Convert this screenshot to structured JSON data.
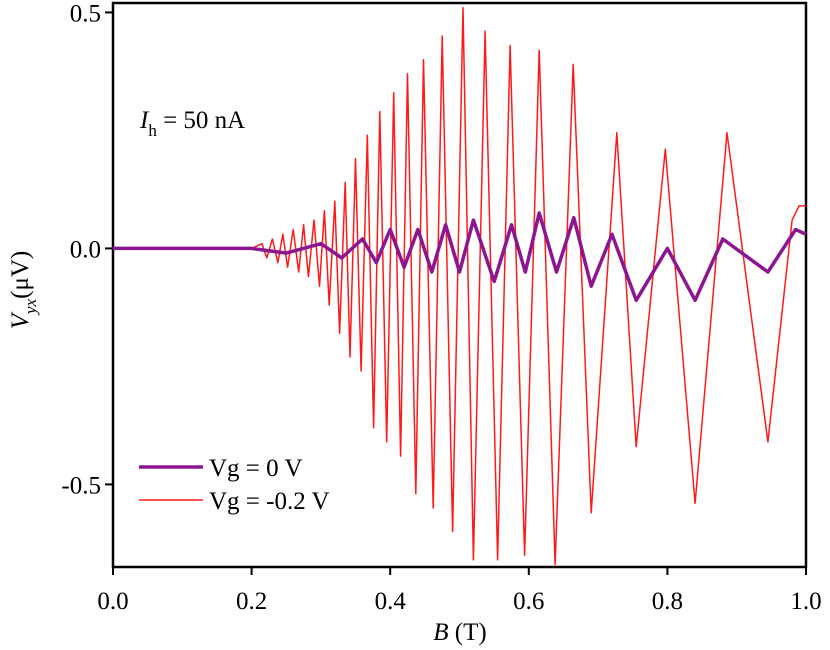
{
  "chart_data": {
    "type": "line",
    "annotation": {
      "symbol": "I",
      "subscript": "h",
      "text": " = 50 nA"
    },
    "x_label": {
      "symbol": "B",
      "unit": " (T)"
    },
    "y_label": {
      "symbol": "V",
      "subscript": "yx",
      "unit": "(μV)"
    },
    "xlim": [
      0,
      1.0
    ],
    "xticks": [
      {
        "value": 0,
        "label": "0.0"
      },
      {
        "value": 0.2,
        "label": "0.2"
      },
      {
        "value": 0.4,
        "label": "0.4"
      },
      {
        "value": 0.6,
        "label": "0.6"
      },
      {
        "value": 0.8,
        "label": "0.8"
      },
      {
        "value": 1.0,
        "label": "1.0"
      }
    ],
    "ylim": [
      -0.675,
      0.52
    ],
    "yticks": [
      {
        "value": -0.5,
        "label": "-0.5"
      },
      {
        "value": 0,
        "label": "0.0"
      },
      {
        "value": 0.5,
        "label": "0.5"
      }
    ],
    "legend": "lower left",
    "series": [
      {
        "name": "Vg = -0.2 V",
        "color": "#ff1a1a",
        "width": 1.5,
        "x": [
          0,
          0.05,
          0.1,
          0.15,
          0.2,
          0.215,
          0.222,
          0.23,
          0.238,
          0.245,
          0.252,
          0.26,
          0.268,
          0.275,
          0.282,
          0.29,
          0.298,
          0.305,
          0.312,
          0.32,
          0.327,
          0.335,
          0.342,
          0.35,
          0.358,
          0.367,
          0.376,
          0.385,
          0.395,
          0.405,
          0.415,
          0.425,
          0.437,
          0.448,
          0.462,
          0.475,
          0.49,
          0.505,
          0.52,
          0.537,
          0.555,
          0.573,
          0.594,
          0.615,
          0.638,
          0.664,
          0.69,
          0.727,
          0.755,
          0.797,
          0.84,
          0.886,
          0.945,
          0.98,
          0.99,
          1.0
        ],
        "values": [
          0,
          0,
          0,
          0,
          0,
          0.01,
          -0.02,
          0.02,
          -0.03,
          0.03,
          -0.04,
          0.04,
          -0.05,
          0.05,
          -0.06,
          0.06,
          -0.08,
          0.08,
          -0.12,
          0.1,
          -0.18,
          0.14,
          -0.23,
          0.19,
          -0.26,
          0.24,
          -0.38,
          0.29,
          -0.41,
          0.33,
          -0.44,
          0.37,
          -0.52,
          0.4,
          -0.55,
          0.45,
          -0.6,
          0.51,
          -0.66,
          0.46,
          -0.66,
          0.43,
          -0.65,
          0.42,
          -0.67,
          0.39,
          -0.56,
          0.245,
          -0.42,
          0.21,
          -0.54,
          0.245,
          -0.41,
          0.06,
          0.09,
          0.09
        ]
      },
      {
        "name": "Vg = 0 V",
        "color": "#8b168f",
        "width": 3.5,
        "x": [
          0,
          0.1,
          0.2,
          0.25,
          0.3,
          0.33,
          0.36,
          0.38,
          0.4,
          0.42,
          0.44,
          0.46,
          0.48,
          0.5,
          0.52,
          0.55,
          0.575,
          0.595,
          0.615,
          0.64,
          0.665,
          0.69,
          0.72,
          0.755,
          0.8,
          0.84,
          0.88,
          0.945,
          0.985,
          1.0
        ],
        "values": [
          0,
          0,
          0,
          -0.01,
          0.01,
          -0.02,
          0.02,
          -0.03,
          0.04,
          -0.04,
          0.04,
          -0.05,
          0.05,
          -0.05,
          0.06,
          -0.07,
          0.05,
          -0.05,
          0.075,
          -0.05,
          0.065,
          -0.08,
          0.03,
          -0.11,
          0.0,
          -0.11,
          0.02,
          -0.05,
          0.04,
          0.03
        ]
      }
    ]
  }
}
